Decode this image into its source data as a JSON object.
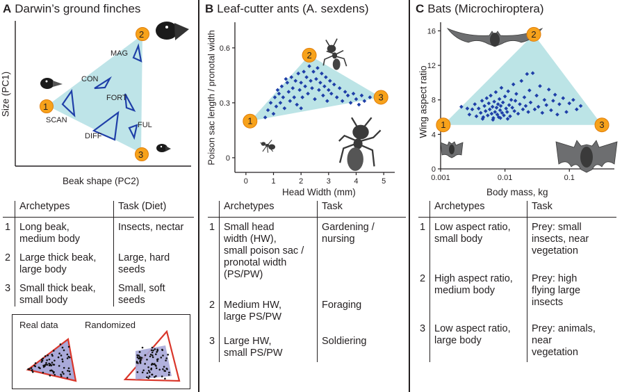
{
  "panelA": {
    "letter": "A",
    "title": "Darwin’s ground finches",
    "xlabel": "Beak shape (PC2)",
    "ylabel": "Size (PC1)",
    "species": [
      "MAG",
      "CON",
      "FORT",
      "SCAN",
      "DIFF",
      "FUL"
    ],
    "archetype_markers": [
      "1",
      "2",
      "3"
    ],
    "table": {
      "headers": [
        "Archetypes",
        "Task (Diet)"
      ],
      "rows": [
        {
          "n": "1",
          "archetype": [
            "Long beak,",
            "medium body"
          ],
          "task": [
            "Insects, nectar"
          ]
        },
        {
          "n": "2",
          "archetype": [
            "Large thick beak,",
            "large body"
          ],
          "task": [
            "Large, hard",
            "seeds"
          ]
        },
        {
          "n": "3",
          "archetype": [
            "Small thick beak,",
            "small body"
          ],
          "task": [
            "Small, soft",
            "seeds"
          ]
        }
      ]
    },
    "inset": {
      "real_label": "Real data",
      "random_label": "Randomized"
    }
  },
  "panelB": {
    "letter": "B",
    "title": "Leaf-cutter ants (A. sexdens)",
    "xlabel": "Head Width (mm)",
    "ylabel": "Poison sac length / pronotal width",
    "table": {
      "headers": [
        "Archetypes",
        "Task"
      ],
      "rows": [
        {
          "n": "1",
          "archetype": [
            "Small head",
            "width (HW),",
            "small poison sac /",
            "pronotal width",
            "(PS/PW)"
          ],
          "task": [
            "Gardening /",
            "nursing"
          ]
        },
        {
          "n": "2",
          "archetype": [
            "Medium HW,",
            "large PS/PW"
          ],
          "task": [
            "Foraging"
          ]
        },
        {
          "n": "3",
          "archetype": [
            "Large HW,",
            "small PS/PW"
          ],
          "task": [
            "Soldiering"
          ]
        }
      ]
    }
  },
  "panelC": {
    "letter": "C",
    "title": "Bats (Microchiroptera)",
    "xlabel": "Body mass, kg",
    "ylabel": "Wing aspect ratio",
    "table": {
      "headers": [
        "Archetypes",
        "Task"
      ],
      "rows": [
        {
          "n": "1",
          "archetype": [
            "Low aspect ratio,",
            "small body"
          ],
          "task": [
            "Prey: small",
            "insects, near",
            "vegetation"
          ]
        },
        {
          "n": "2",
          "archetype": [
            "High aspect ratio,",
            "medium body"
          ],
          "task": [
            "Prey: high",
            "flying large",
            "insects"
          ]
        },
        {
          "n": "3",
          "archetype": [
            "Low aspect ratio,",
            "large body"
          ],
          "task": [
            "Prey: animals,",
            "near",
            "vegetation"
          ]
        }
      ]
    }
  },
  "colors": {
    "point": "#1f3fa8",
    "hull": "#9fd8dc",
    "marker": "#f7a21b",
    "outline": "#1f3fa8",
    "inset_fill": "#a9a9d9",
    "inset_edge": "#d9362a"
  },
  "chart_data": [
    {
      "type": "scatter",
      "title": "",
      "xlabel": "Head Width (mm)",
      "ylabel": "Poison sac length / pronotal width",
      "xlim": [
        -0.4,
        5.4
      ],
      "ylim": [
        -0.08,
        0.74
      ],
      "x_ticks": [
        0,
        1,
        2,
        3,
        4,
        5
      ],
      "y_ticks": [
        0,
        0.3,
        0.6
      ],
      "archetypes": [
        {
          "id": "1",
          "x": 0.15,
          "y": 0.2
        },
        {
          "id": "2",
          "x": 2.3,
          "y": 0.56
        },
        {
          "id": "3",
          "x": 4.9,
          "y": 0.33
        }
      ],
      "points": [
        {
          "x": 0.7,
          "y": 0.22
        },
        {
          "x": 0.8,
          "y": 0.26
        },
        {
          "x": 0.9,
          "y": 0.3
        },
        {
          "x": 1.0,
          "y": 0.24
        },
        {
          "x": 1.05,
          "y": 0.33
        },
        {
          "x": 1.1,
          "y": 0.28
        },
        {
          "x": 1.2,
          "y": 0.35
        },
        {
          "x": 1.25,
          "y": 0.3
        },
        {
          "x": 1.3,
          "y": 0.39
        },
        {
          "x": 1.35,
          "y": 0.33
        },
        {
          "x": 1.4,
          "y": 0.27
        },
        {
          "x": 1.5,
          "y": 0.41
        },
        {
          "x": 1.55,
          "y": 0.36
        },
        {
          "x": 1.6,
          "y": 0.31
        },
        {
          "x": 1.65,
          "y": 0.44
        },
        {
          "x": 1.7,
          "y": 0.38
        },
        {
          "x": 1.75,
          "y": 0.33
        },
        {
          "x": 1.8,
          "y": 0.42
        },
        {
          "x": 1.85,
          "y": 0.29
        },
        {
          "x": 1.9,
          "y": 0.46
        },
        {
          "x": 1.95,
          "y": 0.37
        },
        {
          "x": 2.0,
          "y": 0.41
        },
        {
          "x": 2.05,
          "y": 0.33
        },
        {
          "x": 2.1,
          "y": 0.47
        },
        {
          "x": 2.15,
          "y": 0.39
        },
        {
          "x": 2.2,
          "y": 0.44
        },
        {
          "x": 2.25,
          "y": 0.35
        },
        {
          "x": 2.3,
          "y": 0.5
        },
        {
          "x": 2.35,
          "y": 0.42
        },
        {
          "x": 2.4,
          "y": 0.38
        },
        {
          "x": 2.45,
          "y": 0.47
        },
        {
          "x": 2.5,
          "y": 0.32
        },
        {
          "x": 2.55,
          "y": 0.43
        },
        {
          "x": 2.6,
          "y": 0.49
        },
        {
          "x": 2.65,
          "y": 0.37
        },
        {
          "x": 2.7,
          "y": 0.41
        },
        {
          "x": 2.75,
          "y": 0.46
        },
        {
          "x": 2.8,
          "y": 0.34
        },
        {
          "x": 2.85,
          "y": 0.39
        },
        {
          "x": 2.9,
          "y": 0.44
        },
        {
          "x": 2.95,
          "y": 0.31
        },
        {
          "x": 3.0,
          "y": 0.37
        },
        {
          "x": 3.05,
          "y": 0.42
        },
        {
          "x": 3.1,
          "y": 0.35
        },
        {
          "x": 3.2,
          "y": 0.4
        },
        {
          "x": 3.3,
          "y": 0.33
        },
        {
          "x": 3.4,
          "y": 0.38
        },
        {
          "x": 3.5,
          "y": 0.31
        },
        {
          "x": 3.6,
          "y": 0.36
        },
        {
          "x": 3.7,
          "y": 0.34
        },
        {
          "x": 3.8,
          "y": 0.3
        },
        {
          "x": 3.9,
          "y": 0.35
        },
        {
          "x": 4.0,
          "y": 0.32
        },
        {
          "x": 4.1,
          "y": 0.29
        },
        {
          "x": 4.2,
          "y": 0.34
        },
        {
          "x": 4.3,
          "y": 0.31
        },
        {
          "x": 4.5,
          "y": 0.33
        },
        {
          "x": 1.15,
          "y": 0.37
        },
        {
          "x": 1.45,
          "y": 0.43
        },
        {
          "x": 2.0,
          "y": 0.27
        }
      ]
    },
    {
      "type": "scatter",
      "title": "",
      "xlabel": "Body mass, kg",
      "ylabel": "Wing aspect ratio",
      "x_scale": "log",
      "xlim": [
        0.001,
        0.5
      ],
      "ylim": [
        0,
        17
      ],
      "x_ticks": [
        0.001,
        0.01,
        0.1
      ],
      "x_tick_labels": [
        "0.001",
        "0.01",
        "0.1"
      ],
      "y_ticks": [
        0,
        4,
        8,
        12,
        16
      ],
      "archetypes": [
        {
          "id": "1",
          "x": 0.0011,
          "y": 5.1
        },
        {
          "id": "2",
          "x": 0.028,
          "y": 15.6
        },
        {
          "id": "3",
          "x": 0.32,
          "y": 5.1
        }
      ],
      "points": [
        {
          "x": 0.0021,
          "y": 7.2
        },
        {
          "x": 0.0028,
          "y": 6.3
        },
        {
          "x": 0.0031,
          "y": 6.9
        },
        {
          "x": 0.0034,
          "y": 7.5
        },
        {
          "x": 0.0036,
          "y": 6.1
        },
        {
          "x": 0.0039,
          "y": 7.0
        },
        {
          "x": 0.0042,
          "y": 6.5
        },
        {
          "x": 0.0044,
          "y": 7.9
        },
        {
          "x": 0.0046,
          "y": 6.0
        },
        {
          "x": 0.0048,
          "y": 7.3
        },
        {
          "x": 0.005,
          "y": 6.7
        },
        {
          "x": 0.0052,
          "y": 8.2
        },
        {
          "x": 0.0054,
          "y": 6.2
        },
        {
          "x": 0.0056,
          "y": 7.6
        },
        {
          "x": 0.0058,
          "y": 6.9
        },
        {
          "x": 0.006,
          "y": 8.5
        },
        {
          "x": 0.0062,
          "y": 6.4
        },
        {
          "x": 0.0064,
          "y": 7.2
        },
        {
          "x": 0.0066,
          "y": 5.9
        },
        {
          "x": 0.0068,
          "y": 7.8
        },
        {
          "x": 0.007,
          "y": 6.6
        },
        {
          "x": 0.0072,
          "y": 8.9
        },
        {
          "x": 0.0074,
          "y": 7.1
        },
        {
          "x": 0.0076,
          "y": 6.3
        },
        {
          "x": 0.0078,
          "y": 7.5
        },
        {
          "x": 0.008,
          "y": 6.0
        },
        {
          "x": 0.0082,
          "y": 8.1
        },
        {
          "x": 0.0084,
          "y": 6.8
        },
        {
          "x": 0.0086,
          "y": 7.3
        },
        {
          "x": 0.0088,
          "y": 9.4
        },
        {
          "x": 0.009,
          "y": 6.5
        },
        {
          "x": 0.0093,
          "y": 7.7
        },
        {
          "x": 0.0096,
          "y": 6.2
        },
        {
          "x": 0.01,
          "y": 8.4
        },
        {
          "x": 0.0104,
          "y": 7.0
        },
        {
          "x": 0.0108,
          "y": 6.6
        },
        {
          "x": 0.0112,
          "y": 9.0
        },
        {
          "x": 0.0116,
          "y": 7.4
        },
        {
          "x": 0.012,
          "y": 6.1
        },
        {
          "x": 0.0125,
          "y": 8.0
        },
        {
          "x": 0.013,
          "y": 7.1
        },
        {
          "x": 0.0135,
          "y": 9.8
        },
        {
          "x": 0.014,
          "y": 6.7
        },
        {
          "x": 0.0145,
          "y": 7.9
        },
        {
          "x": 0.015,
          "y": 8.7
        },
        {
          "x": 0.016,
          "y": 6.4
        },
        {
          "x": 0.017,
          "y": 7.5
        },
        {
          "x": 0.018,
          "y": 10.2
        },
        {
          "x": 0.019,
          "y": 6.9
        },
        {
          "x": 0.02,
          "y": 8.3
        },
        {
          "x": 0.021,
          "y": 7.3
        },
        {
          "x": 0.022,
          "y": 11.0
        },
        {
          "x": 0.023,
          "y": 6.6
        },
        {
          "x": 0.024,
          "y": 9.1
        },
        {
          "x": 0.025,
          "y": 7.7
        },
        {
          "x": 0.027,
          "y": 11.1
        },
        {
          "x": 0.029,
          "y": 6.9
        },
        {
          "x": 0.031,
          "y": 8.5
        },
        {
          "x": 0.033,
          "y": 7.2
        },
        {
          "x": 0.035,
          "y": 9.6
        },
        {
          "x": 0.038,
          "y": 6.5
        },
        {
          "x": 0.041,
          "y": 8.0
        },
        {
          "x": 0.044,
          "y": 7.4
        },
        {
          "x": 0.048,
          "y": 9.2
        },
        {
          "x": 0.052,
          "y": 6.8
        },
        {
          "x": 0.056,
          "y": 7.9
        },
        {
          "x": 0.06,
          "y": 8.6
        },
        {
          "x": 0.065,
          "y": 6.3
        },
        {
          "x": 0.07,
          "y": 7.5
        },
        {
          "x": 0.08,
          "y": 8.2
        },
        {
          "x": 0.09,
          "y": 6.6
        },
        {
          "x": 0.1,
          "y": 7.6
        },
        {
          "x": 0.115,
          "y": 8.0
        },
        {
          "x": 0.13,
          "y": 6.9
        },
        {
          "x": 0.15,
          "y": 7.3
        },
        {
          "x": 0.0045,
          "y": 5.8
        },
        {
          "x": 0.0065,
          "y": 5.7
        },
        {
          "x": 0.0085,
          "y": 5.9
        },
        {
          "x": 0.011,
          "y": 5.8
        },
        {
          "x": 0.0026,
          "y": 7.0
        }
      ]
    }
  ]
}
